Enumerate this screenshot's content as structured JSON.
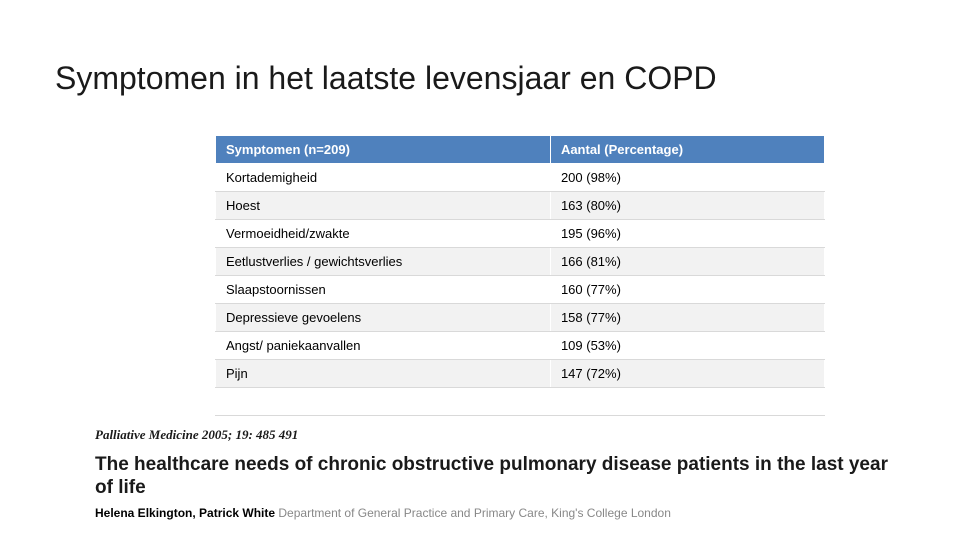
{
  "title": "Symptomen in het laatste levensjaar en COPD",
  "table": {
    "header": {
      "col_a": "Symptomen  (n=209)",
      "col_b": "Aantal (Percentage)"
    },
    "rows": [
      {
        "a": "Kortademigheid",
        "b": "200 (98%)"
      },
      {
        "a": "Hoest",
        "b": "163 (80%)"
      },
      {
        "a": "Vermoeidheid/zwakte",
        "b": "195 (96%)"
      },
      {
        "a": "Eetlustverlies / gewichtsverlies",
        "b": "166 (81%)"
      },
      {
        "a": "Slaapstoornissen",
        "b": "160 (77%)"
      },
      {
        "a": "Depressieve gevoelens",
        "b": "158 (77%)"
      },
      {
        "a": "Angst/ paniekaanvallen",
        "b": "109 (53%)"
      },
      {
        "a": "Pijn",
        "b": "147  (72%)"
      },
      {
        "a": " ",
        "b": " "
      }
    ]
  },
  "citation": {
    "journal_prefix": "Palliative Medicine ",
    "journal_year": "2005; ",
    "journal_vol": "19",
    "journal_pages": ": 485  491",
    "article_title": "The healthcare needs of chronic obstructive pulmonary disease patients in the last year of life",
    "author1": "Helena Elkington, Patrick White",
    "affil1": " Department of General Practice and Primary Care, King's College London"
  },
  "colors": {
    "header_bg": "#4f81bd",
    "header_fg": "#ffffff",
    "row_border": "#d9d9d9"
  }
}
